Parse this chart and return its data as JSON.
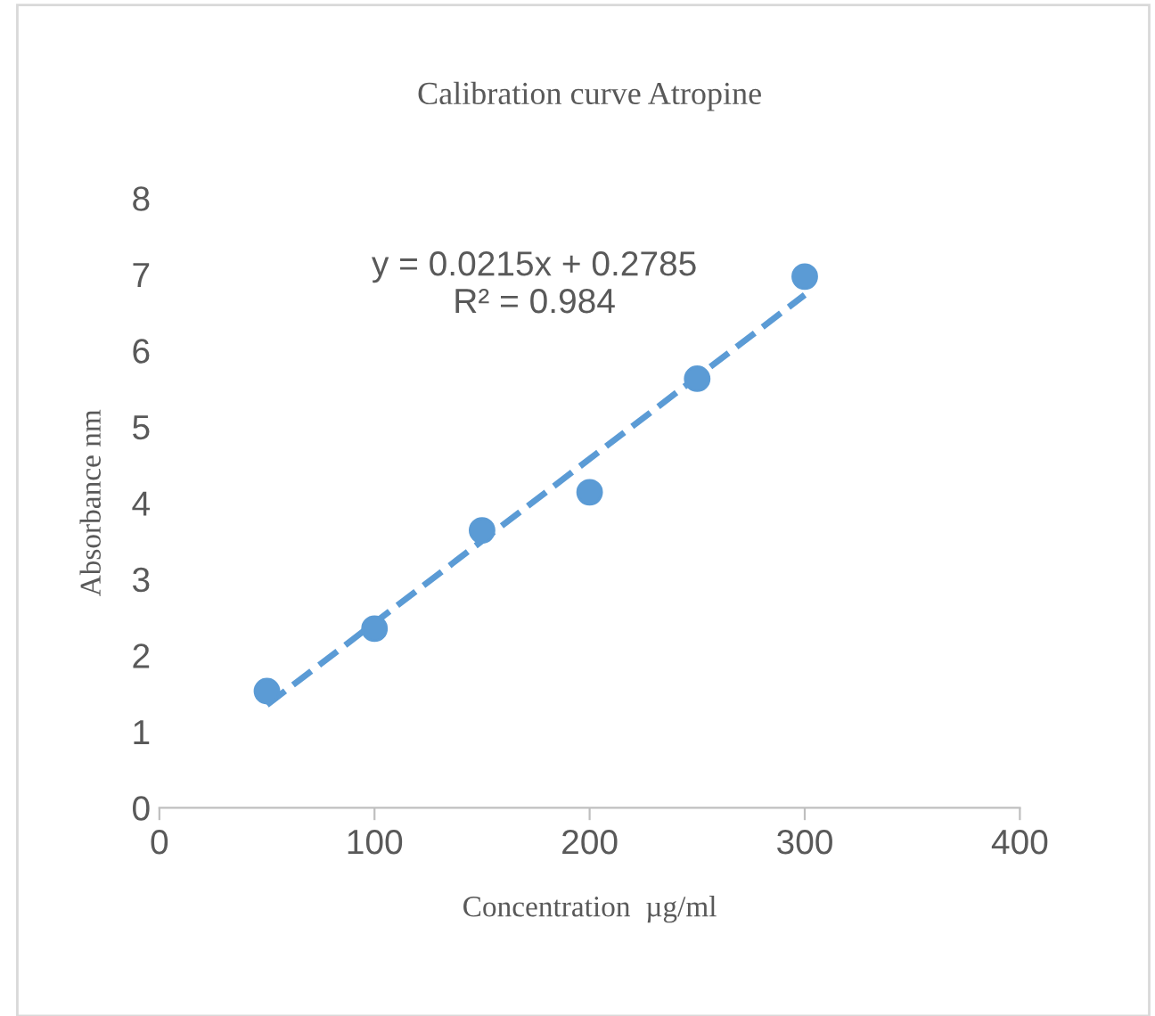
{
  "chart_data": {
    "type": "scatter",
    "title": "Calibration curve Atropine",
    "xlabel": "Concentration  µg/ml",
    "ylabel": "Absorbance nm",
    "x": [
      50,
      100,
      150,
      200,
      250,
      300
    ],
    "series": [
      {
        "color": "#5b9bd5",
        "marker": "circle",
        "values": [
          1.53,
          2.35,
          3.64,
          4.14,
          5.63,
          6.97
        ]
      },
      {
        "type": "line",
        "color": "#5b9bd5",
        "line_style": "dashed",
        "marker": "none",
        "x": [
          50,
          300
        ],
        "values": [
          1.35,
          6.73
        ]
      }
    ],
    "annotations": [
      "y = 0.0215x + 0.2785\nR² = 0.984"
    ],
    "xlim": [
      0,
      400
    ],
    "xticks": [
      0,
      100,
      200,
      300,
      400
    ],
    "ylim": [
      0,
      8
    ],
    "yticks": [
      0,
      1,
      2,
      3,
      4,
      5,
      6,
      7,
      8
    ],
    "grid": false,
    "legend": false
  }
}
